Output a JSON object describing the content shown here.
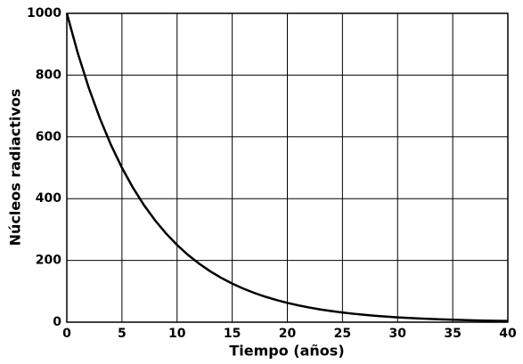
{
  "chart_data": {
    "type": "line",
    "x_label": "Tiempo (años)",
    "y_label": "Núcleos radiactivos",
    "x": [
      0,
      1,
      2,
      3,
      4,
      5,
      6,
      7,
      8,
      9,
      10,
      11,
      12,
      13,
      14,
      15,
      16,
      17,
      18,
      19,
      20,
      21,
      22,
      23,
      24,
      25,
      26,
      27,
      28,
      29,
      30,
      31,
      32,
      33,
      34,
      35,
      36,
      37,
      38,
      39,
      40
    ],
    "series": [
      {
        "color": "#000000",
        "values": [
          1000,
          870.6,
          757.9,
          659.8,
          574.3,
          500,
          435.3,
          378.9,
          329.9,
          287.2,
          250,
          217.6,
          189.5,
          164.9,
          143.6,
          125,
          108.8,
          94.7,
          82.5,
          71.8,
          62.5,
          54.4,
          47.4,
          41.2,
          35.9,
          31.3,
          27.2,
          23.7,
          20.6,
          17.9,
          15.6,
          13.6,
          11.8,
          10.3,
          9.0,
          7.8,
          6.8,
          5.9,
          5.2,
          4.5,
          3.9
        ]
      }
    ],
    "xlim": [
      0,
      40
    ],
    "xticks": [
      0,
      5,
      10,
      15,
      20,
      25,
      30,
      35,
      40
    ],
    "ylim": [
      0,
      1000
    ],
    "yticks": [
      0,
      200,
      400,
      600,
      800,
      1000
    ],
    "grid": true
  }
}
